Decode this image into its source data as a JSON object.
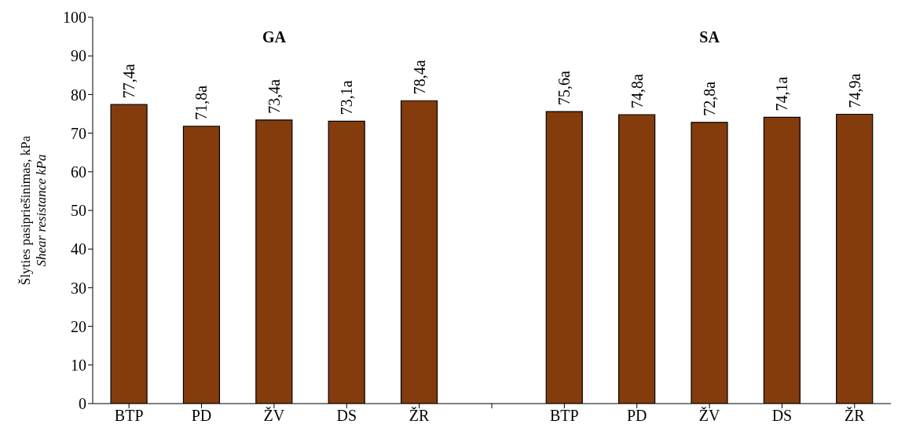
{
  "chart_data": {
    "type": "bar",
    "ylabel": "Šlyties pasipriešinimas, kPa\nShear resistance kPa",
    "annotations": [
      "GA",
      "SA"
    ],
    "categories": [
      "BTP",
      "PD",
      "ŽV",
      "DS",
      "ŽR",
      null,
      "BTP",
      "PD",
      "ŽV",
      "DS",
      "ŽR"
    ],
    "values": [
      77.4,
      71.8,
      73.4,
      73.1,
      78.4,
      null,
      75.6,
      74.8,
      72.8,
      74.1,
      74.9
    ],
    "value_labels": [
      "77,4a",
      "71,8a",
      "73,4a",
      "73,1a",
      "78,4a",
      null,
      "75,6a",
      "74,8a",
      "72,8a",
      "74,1a",
      "74,9a"
    ],
    "color": "#843c0c",
    "ylim": [
      0,
      100
    ],
    "yticks": [
      0,
      10,
      20,
      30,
      40,
      50,
      60,
      70,
      80,
      90,
      100
    ]
  }
}
